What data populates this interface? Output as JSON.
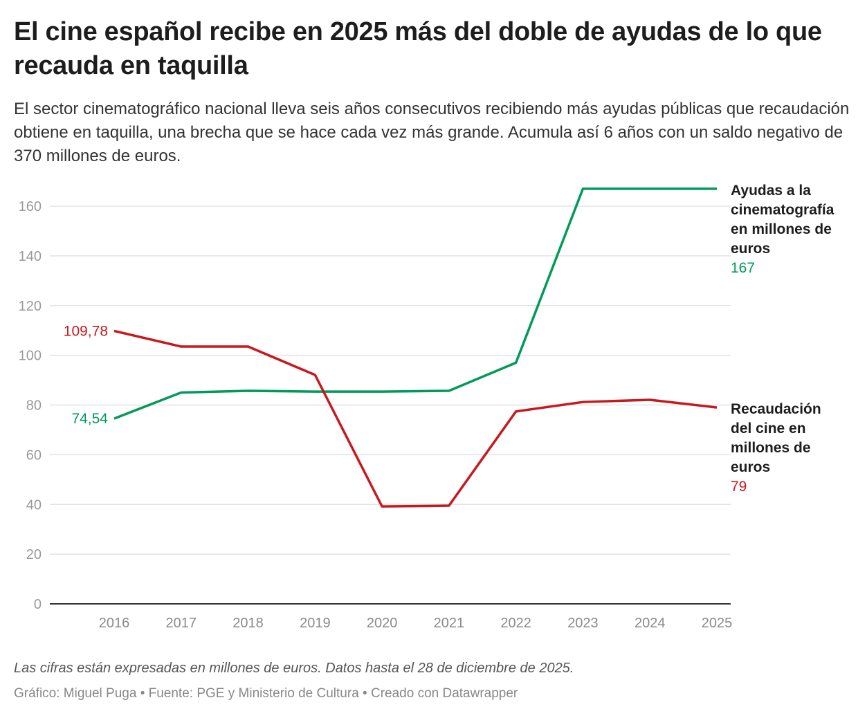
{
  "title": "El cine español recibe en 2025 más del doble de ayudas de lo que recauda en taquilla",
  "subtitle": "El sector cinematográfico nacional lleva seis años consecutivos recibiendo más ayudas públicas que recaudación obtiene en taquilla, una brecha que se hace cada vez más grande. Acumula así 6 años con un saldo negativo de 370 millones de euros.",
  "note": "Las cifras están expresadas en millones de euros. Datos hasta el 28 de diciembre de 2025.",
  "credits": "Gráfico: Miguel Puga • Fuente: PGE y Ministerio de Cultura  • Creado con Datawrapper",
  "chart_data": {
    "type": "line",
    "x": [
      2016,
      2017,
      2018,
      2019,
      2020,
      2021,
      2022,
      2023,
      2024,
      2025
    ],
    "ylim": [
      0,
      170
    ],
    "yticks": [
      0,
      20,
      40,
      60,
      80,
      100,
      120,
      140,
      160
    ],
    "grid": true,
    "legend": "direct labels right",
    "series": [
      {
        "name": "Ayudas a la cinematografía en millones de euros",
        "color": "#009a5a",
        "values": [
          74.54,
          85,
          85.7,
          85.4,
          85.4,
          85.7,
          97,
          167,
          167,
          167
        ],
        "start_label": "74,54",
        "end_label": "167"
      },
      {
        "name": "Recaudación del cine en millones de euros",
        "color": "#c8181e",
        "values": [
          109.78,
          103.5,
          103.5,
          92.1,
          39.2,
          39.5,
          77.4,
          81.2,
          82.1,
          79
        ],
        "start_label": "109,78",
        "end_label": "79"
      }
    ]
  }
}
